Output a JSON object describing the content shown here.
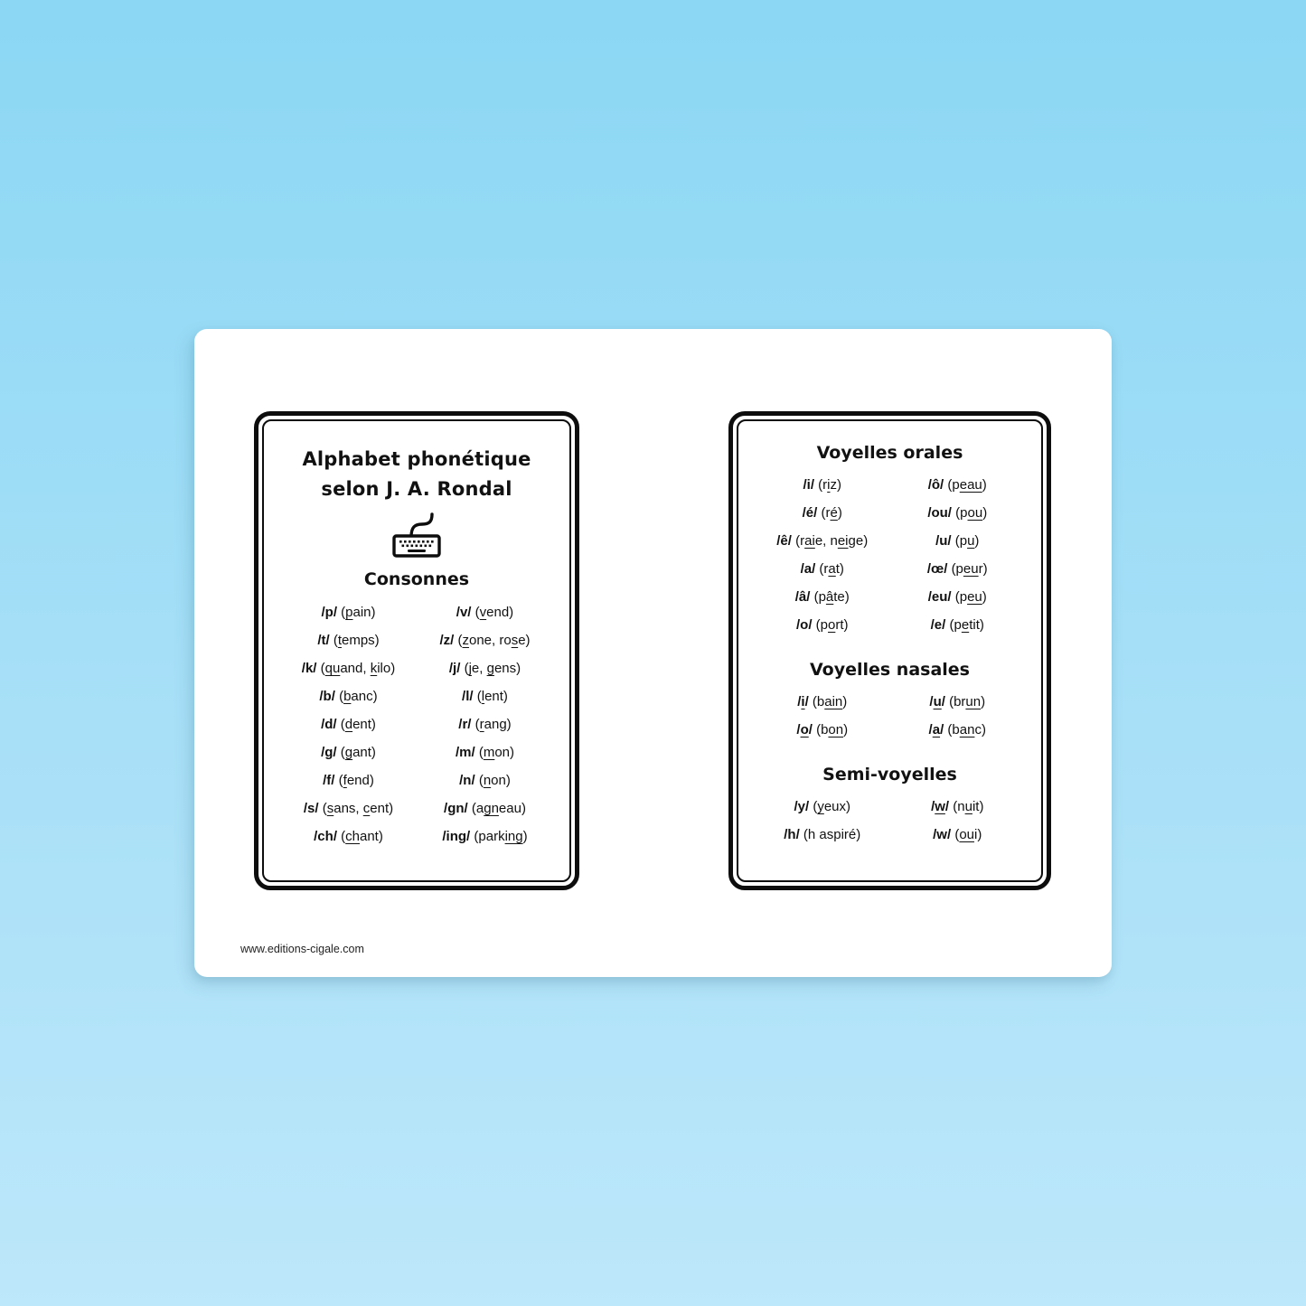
{
  "colors": {
    "background_top": "#8bd7f4",
    "background_bottom": "#bde7fa",
    "card": "#ffffff",
    "ink": "#111111"
  },
  "left_panel": {
    "title_line1": "Alphabet phonétique",
    "title_line2": "selon J. A. Rondal",
    "icon": "keyboard-icon",
    "heading": "Consonnes",
    "entries": [
      {
        "symbol": "/p/",
        "example": "(_p_ain)"
      },
      {
        "symbol": "/v/",
        "example": "(_v_end)"
      },
      {
        "symbol": "/t/",
        "example": "(_t_emps)"
      },
      {
        "symbol": "/z/",
        "example": "(_z_one, ro_s_e)"
      },
      {
        "symbol": "/k/",
        "example": "(_qu_and, _k_ilo)"
      },
      {
        "symbol": "/j/",
        "example": "(_j_e, _g_ens)"
      },
      {
        "symbol": "/b/",
        "example": "(_b_anc)"
      },
      {
        "symbol": "/l/",
        "example": "(_l_ent)"
      },
      {
        "symbol": "/d/",
        "example": "(_d_ent)"
      },
      {
        "symbol": "/r/",
        "example": "(_r_ang)"
      },
      {
        "symbol": "/g/",
        "example": "(_g_ant)"
      },
      {
        "symbol": "/m/",
        "example": "(_m_on)"
      },
      {
        "symbol": "/f/",
        "example": "(_f_end)"
      },
      {
        "symbol": "/n/",
        "example": "(_n_on)"
      },
      {
        "symbol": "/s/",
        "example": "(_s_ans, _c_ent)"
      },
      {
        "symbol": "/gn/",
        "example": "(a_gn_eau)"
      },
      {
        "symbol": "/ch/",
        "example": "(_ch_ant)"
      },
      {
        "symbol": "/ing/",
        "example": "(park_ing_)"
      }
    ]
  },
  "right_panel": {
    "sections": [
      {
        "heading": "Voyelles orales",
        "entries": [
          {
            "symbol": "/i/",
            "example": "(r_i_z)"
          },
          {
            "symbol": "/ô/",
            "example": "(p_eau_)"
          },
          {
            "symbol": "/é/",
            "example": "(r_é_)"
          },
          {
            "symbol": "/ou/",
            "example": "(p_ou_)"
          },
          {
            "symbol": "/ê/",
            "example": "(r_ai_e, n_ei_ge)"
          },
          {
            "symbol": "/u/",
            "example": "(p_u_)"
          },
          {
            "symbol": "/a/",
            "example": "(r_a_t)"
          },
          {
            "symbol": "/œ/",
            "example": "(p_eu_r)"
          },
          {
            "symbol": "/â/",
            "example": "(p_â_te)"
          },
          {
            "symbol": "/eu/",
            "example": "(p_eu_)"
          },
          {
            "symbol": "/o/",
            "example": "(p_o_rt)"
          },
          {
            "symbol": "/e/",
            "example": "(p_e_tit)"
          }
        ]
      },
      {
        "heading": "Voyelles nasales",
        "entries": [
          {
            "symbol": "/_i_/",
            "example": "(b_ain_)"
          },
          {
            "symbol": "/_u_/",
            "example": "(br_un_)"
          },
          {
            "symbol": "/_o_/",
            "example": "(b_on_)"
          },
          {
            "symbol": "/_a_/",
            "example": "(b_an_c)"
          }
        ]
      },
      {
        "heading": "Semi-voyelles",
        "entries": [
          {
            "symbol": "/y/",
            "example": "(_y_eux)"
          },
          {
            "symbol": "/_w_/",
            "example": "(n_u_it)"
          },
          {
            "symbol": "/h/",
            "example": "(h aspiré)"
          },
          {
            "symbol": "/w/",
            "example": "(_ou_i)"
          }
        ]
      }
    ]
  },
  "footer": {
    "url": "www.editions-cigale.com"
  }
}
